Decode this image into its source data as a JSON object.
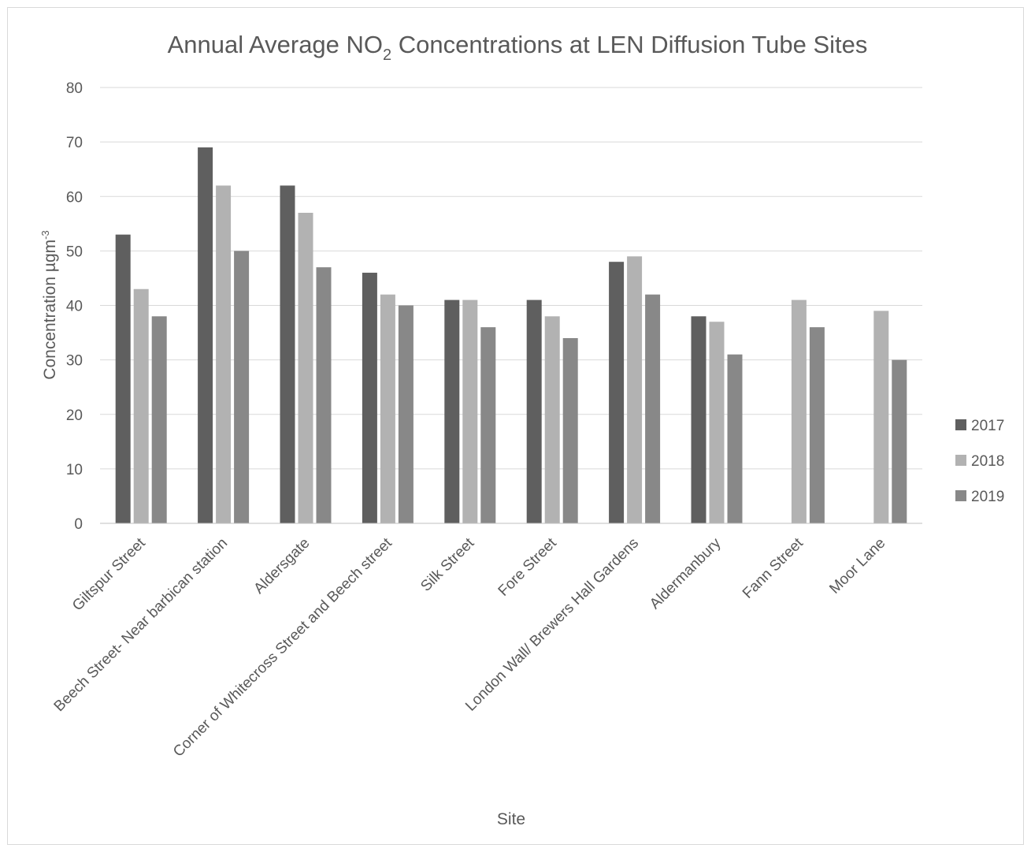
{
  "chart_data": {
    "type": "bar",
    "title": {
      "prefix": "Annual Average NO",
      "subscript": "2",
      "suffix": " Concentrations at LEN Diffusion Tube Sites"
    },
    "xlabel": "Site",
    "ylabel": {
      "text": "Concentration µgm",
      "superscript": "-3"
    },
    "ylim": [
      0,
      80
    ],
    "yticks": [
      0,
      10,
      20,
      30,
      40,
      50,
      60,
      70,
      80
    ],
    "grid": true,
    "legend_position": "right",
    "categories": [
      "Giltspur Street",
      "Beech Street- Near barbican station",
      "Aldersgate",
      "Corner of Whitecross Street and Beech street",
      "Silk Street",
      "Fore Street",
      "London Wall/ Brewers Hall Gardens",
      "Aldermanbury",
      "Fann Street",
      "Moor Lane"
    ],
    "series": [
      {
        "name": "2017",
        "color": "#5f5f5f",
        "values": [
          53,
          69,
          62,
          46,
          41,
          41,
          48,
          38,
          null,
          null
        ]
      },
      {
        "name": "2018",
        "color": "#b2b2b2",
        "values": [
          43,
          62,
          57,
          42,
          41,
          38,
          49,
          37,
          41,
          39
        ]
      },
      {
        "name": "2019",
        "color": "#888888",
        "values": [
          38,
          50,
          47,
          40,
          36,
          34,
          42,
          31,
          36,
          30
        ]
      }
    ],
    "colors": {
      "gridline": "#d9d9d9",
      "axis_line": "#bfbfbf",
      "text": "#595959",
      "border": "#d9d9d9"
    }
  }
}
